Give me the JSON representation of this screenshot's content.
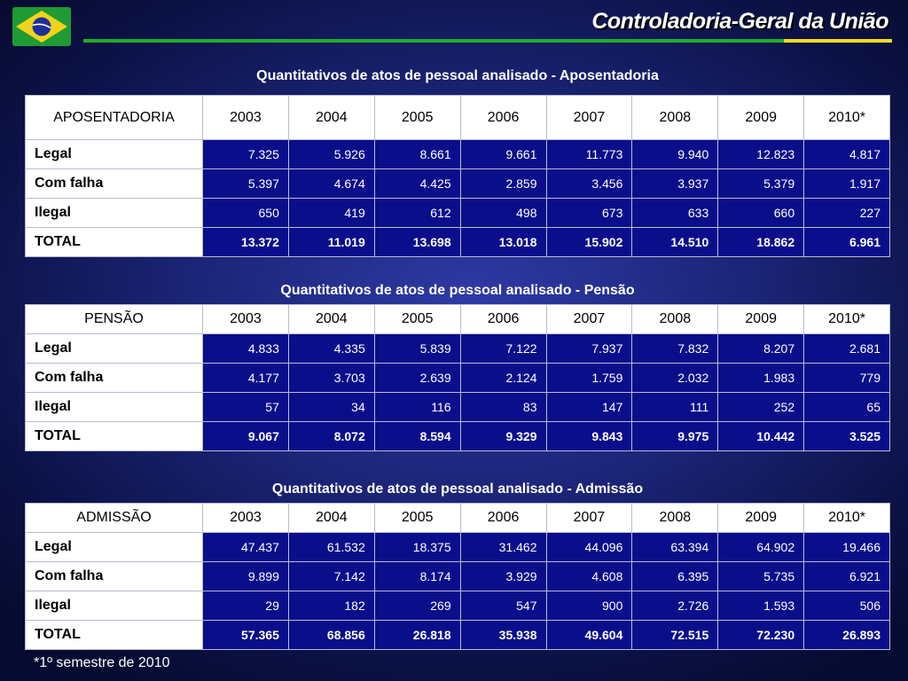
{
  "header": {
    "org_title": "Controladoria-Geral da União",
    "flag_icon": "brazil-flag-icon",
    "colors": {
      "green": "#1fae2c",
      "yellow": "#f5dc1b",
      "blue": "#1b2a8a"
    }
  },
  "tables": [
    {
      "caption": "Quantitativos de atos de pessoal analisado - Aposentadoria",
      "columns": [
        "APOSENTADORIA",
        "2003",
        "2004",
        "2005",
        "2006",
        "2007",
        "2008",
        "2009",
        "2010*"
      ],
      "rows": [
        {
          "label": "Legal",
          "values": [
            "7.325",
            "5.926",
            "8.661",
            "9.661",
            "11.773",
            "9.940",
            "12.823",
            "4.817"
          ]
        },
        {
          "label": "Com falha",
          "values": [
            "5.397",
            "4.674",
            "4.425",
            "2.859",
            "3.456",
            "3.937",
            "5.379",
            "1.917"
          ]
        },
        {
          "label": "Ilegal",
          "values": [
            "650",
            "419",
            "612",
            "498",
            "673",
            "633",
            "660",
            "227"
          ]
        },
        {
          "label": "TOTAL",
          "values": [
            "13.372",
            "11.019",
            "13.698",
            "13.018",
            "15.902",
            "14.510",
            "18.862",
            "6.961"
          ]
        }
      ]
    },
    {
      "caption": "Quantitativos de atos de pessoal analisado - Pensão",
      "columns": [
        "PENSÃO",
        "2003",
        "2004",
        "2005",
        "2006",
        "2007",
        "2008",
        "2009",
        "2010*"
      ],
      "rows": [
        {
          "label": "Legal",
          "values": [
            "4.833",
            "4.335",
            "5.839",
            "7.122",
            "7.937",
            "7.832",
            "8.207",
            "2.681"
          ]
        },
        {
          "label": "Com falha",
          "values": [
            "4.177",
            "3.703",
            "2.639",
            "2.124",
            "1.759",
            "2.032",
            "1.983",
            "779"
          ]
        },
        {
          "label": "Ilegal",
          "values": [
            "57",
            "34",
            "116",
            "83",
            "147",
            "111",
            "252",
            "65"
          ]
        },
        {
          "label": "TOTAL",
          "values": [
            "9.067",
            "8.072",
            "8.594",
            "9.329",
            "9.843",
            "9.975",
            "10.442",
            "3.525"
          ]
        }
      ]
    },
    {
      "caption": "Quantitativos de atos de pessoal analisado - Admissão",
      "columns": [
        "ADMISSÃO",
        "2003",
        "2004",
        "2005",
        "2006",
        "2007",
        "2008",
        "2009",
        "2010*"
      ],
      "rows": [
        {
          "label": "Legal",
          "values": [
            "47.437",
            "61.532",
            "18.375",
            "31.462",
            "44.096",
            "63.394",
            "64.902",
            "19.466"
          ]
        },
        {
          "label": "Com falha",
          "values": [
            "9.899",
            "7.142",
            "8.174",
            "3.929",
            "4.608",
            "6.395",
            "5.735",
            "6.921"
          ]
        },
        {
          "label": "Ilegal",
          "values": [
            "29",
            "182",
            "269",
            "547",
            "900",
            "2.726",
            "1.593",
            "506"
          ]
        },
        {
          "label": "TOTAL",
          "values": [
            "57.365",
            "68.856",
            "26.818",
            "35.938",
            "49.604",
            "72.515",
            "72.230",
            "26.893"
          ]
        }
      ]
    }
  ],
  "footnote": "*1º semestre de 2010"
}
